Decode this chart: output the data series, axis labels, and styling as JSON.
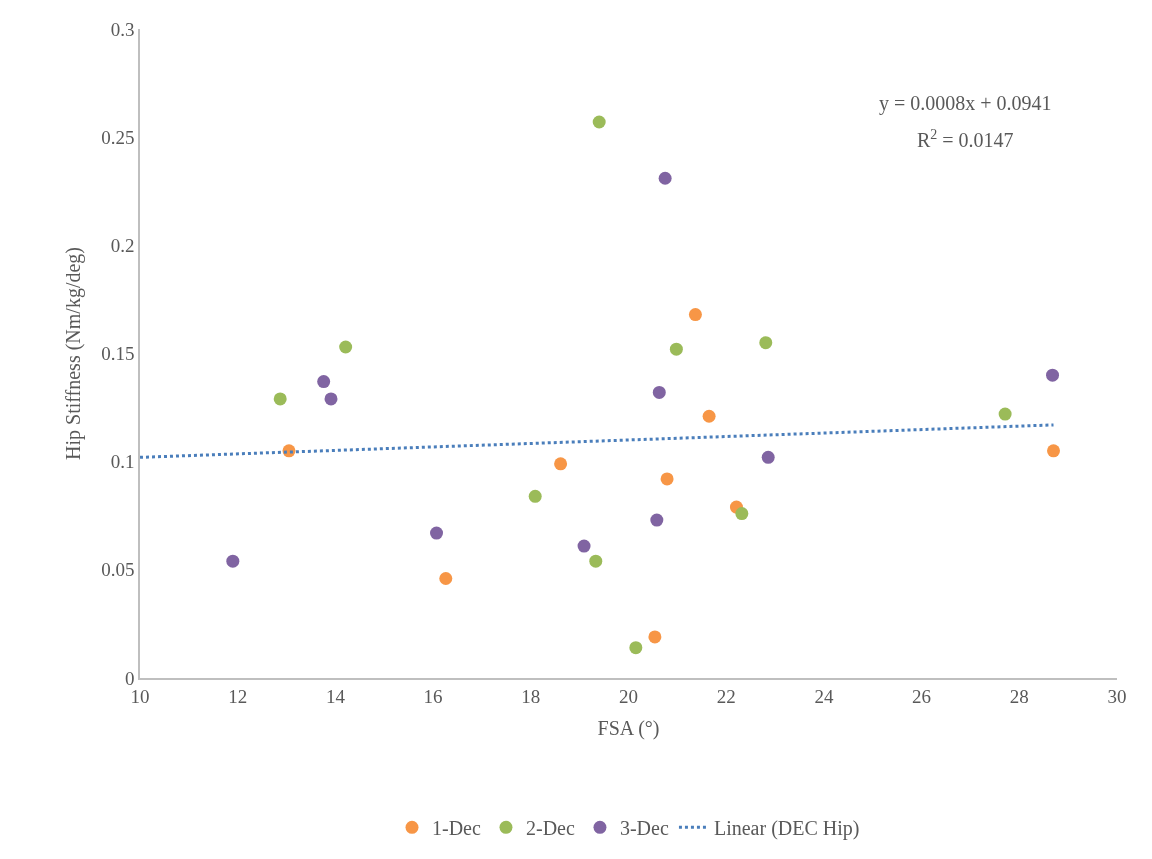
{
  "chart_data": {
    "type": "scatter",
    "xlabel": "FSA (°)",
    "ylabel": "Hip Stiffness (Nm/kg/deg)",
    "xlim": [
      10,
      30
    ],
    "xticks": [
      10,
      12,
      14,
      16,
      18,
      20,
      22,
      24,
      26,
      28,
      30
    ],
    "ylim": [
      0,
      0.3
    ],
    "yticks": [
      0,
      0.05,
      0.1,
      0.15,
      0.2,
      0.25,
      0.3
    ],
    "legend": "bottom",
    "marker": "circle",
    "annotations": [
      "y = 0.0008x + 0.0941",
      "R$^{2}$ = 0.0147"
    ],
    "series": [
      {
        "name": "1-Dec",
        "color": "#f79646",
        "x": [
          13.05,
          16.26,
          18.61,
          20.54,
          20.79,
          21.37,
          21.65,
          22.21,
          28.7
        ],
        "values": [
          0.105,
          0.046,
          0.099,
          0.019,
          0.092,
          0.168,
          0.121,
          0.079,
          0.105
        ]
      },
      {
        "name": "2-Dec",
        "color": "#9bbb59",
        "x": [
          12.87,
          14.21,
          18.09,
          19.33,
          19.4,
          20.15,
          20.98,
          22.32,
          22.81,
          27.71
        ],
        "values": [
          0.129,
          0.153,
          0.084,
          0.054,
          0.257,
          0.014,
          0.152,
          0.076,
          0.155,
          0.122
        ]
      },
      {
        "name": "3-Dec",
        "color": "#8064a2",
        "x": [
          11.9,
          13.76,
          13.91,
          16.07,
          19.09,
          20.58,
          20.63,
          20.75,
          22.86,
          28.68
        ],
        "values": [
          0.054,
          0.137,
          0.129,
          0.067,
          0.061,
          0.073,
          0.132,
          0.231,
          0.102,
          0.14
        ]
      },
      {
        "name": "Linear (DEC Hip)",
        "type": "line",
        "line_style": "dotted",
        "marker": "none",
        "color": "#4a7ebb",
        "x": [
          10,
          28.7
        ],
        "values": [
          0.102,
          0.117
        ]
      }
    ]
  }
}
